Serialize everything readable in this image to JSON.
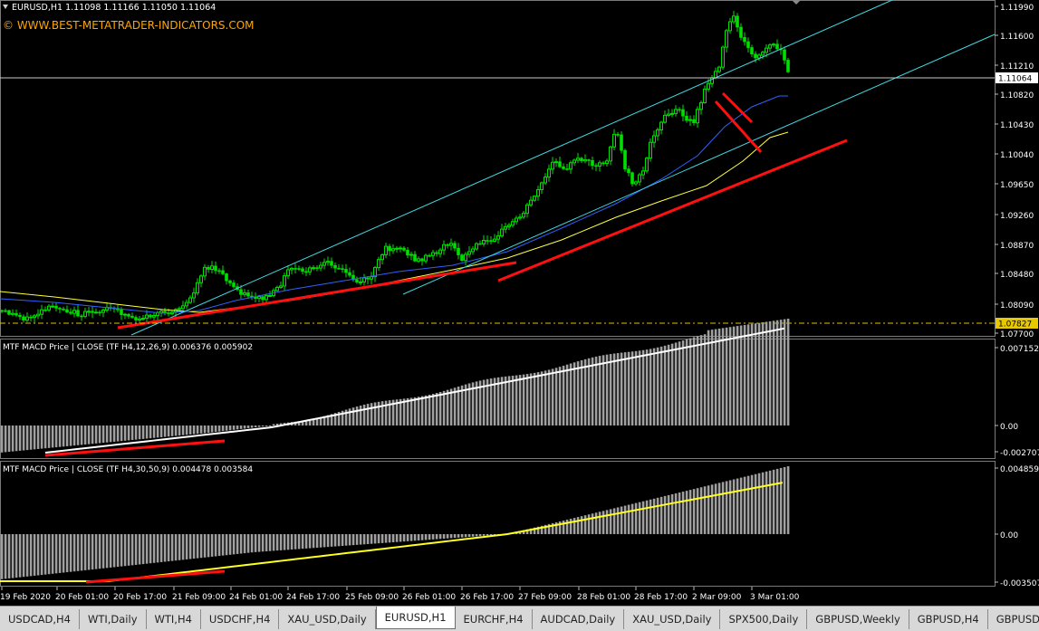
{
  "header": {
    "symbol_line": "EURUSD,H1  1.11098 1.11166 1.11050 1.11064",
    "watermark": "© WWW.BEST-METATRADER-INDICATORS.COM"
  },
  "price_axis": {
    "ticks": [
      "1.11990",
      "1.11600",
      "1.11210",
      "1.10820",
      "1.10430",
      "1.10040",
      "1.09650",
      "1.09260",
      "1.08870",
      "1.08480",
      "1.08090",
      "1.07700"
    ],
    "current_price": "1.11064",
    "low_marker": "1.07827"
  },
  "macd1": {
    "label": "MTF MACD Price | CLOSE  (TF H4,12,26,9) 0.006376 0.005902",
    "ticks": [
      "0.007152",
      "0.00",
      "-0.002707"
    ]
  },
  "macd2": {
    "label": "MTF MACD Price | CLOSE  (TF H4,30,50,9) 0.004478 0.003584",
    "ticks": [
      "0.004859",
      "0.00",
      "-0.003507"
    ]
  },
  "time_axis": [
    "19 Feb 2020",
    "20 Feb 01:00",
    "20 Feb 17:00",
    "21 Feb 09:00",
    "24 Feb 01:00",
    "24 Feb 17:00",
    "25 Feb 09:00",
    "26 Feb 01:00",
    "26 Feb 17:00",
    "27 Feb 09:00",
    "28 Feb 01:00",
    "28 Feb 17:00",
    "2 Mar 09:00",
    "3 Mar 01:00"
  ],
  "tabs": [
    {
      "label": "USDCAD,H4",
      "active": false
    },
    {
      "label": "WTI,Daily",
      "active": false
    },
    {
      "label": "WTI,H4",
      "active": false
    },
    {
      "label": "USDCHF,H4",
      "active": false
    },
    {
      "label": "XAU_USD,Daily",
      "active": false
    },
    {
      "label": "EURUSD,H1",
      "active": true
    },
    {
      "label": "EURCHF,H4",
      "active": false
    },
    {
      "label": "AUDCAD,Daily",
      "active": false
    },
    {
      "label": "XAU_USD,Daily",
      "active": false
    },
    {
      "label": "SPX500,Daily",
      "active": false
    },
    {
      "label": "GBPUSD,Weekly",
      "active": false
    },
    {
      "label": "GBPUSD,H4",
      "active": false
    },
    {
      "label": "GBPUSD,",
      "active": false
    }
  ],
  "colors": {
    "candle": "#00e000",
    "channel": "#40d8e0",
    "ma_blue": "#3060ff",
    "ma_yellow": "#ffff40",
    "trendline": "#ff1010",
    "hist": "#a0a0a0",
    "signal1": "#ffffff",
    "signal2": "#ffff20",
    "watermark": "#ffa500"
  }
}
